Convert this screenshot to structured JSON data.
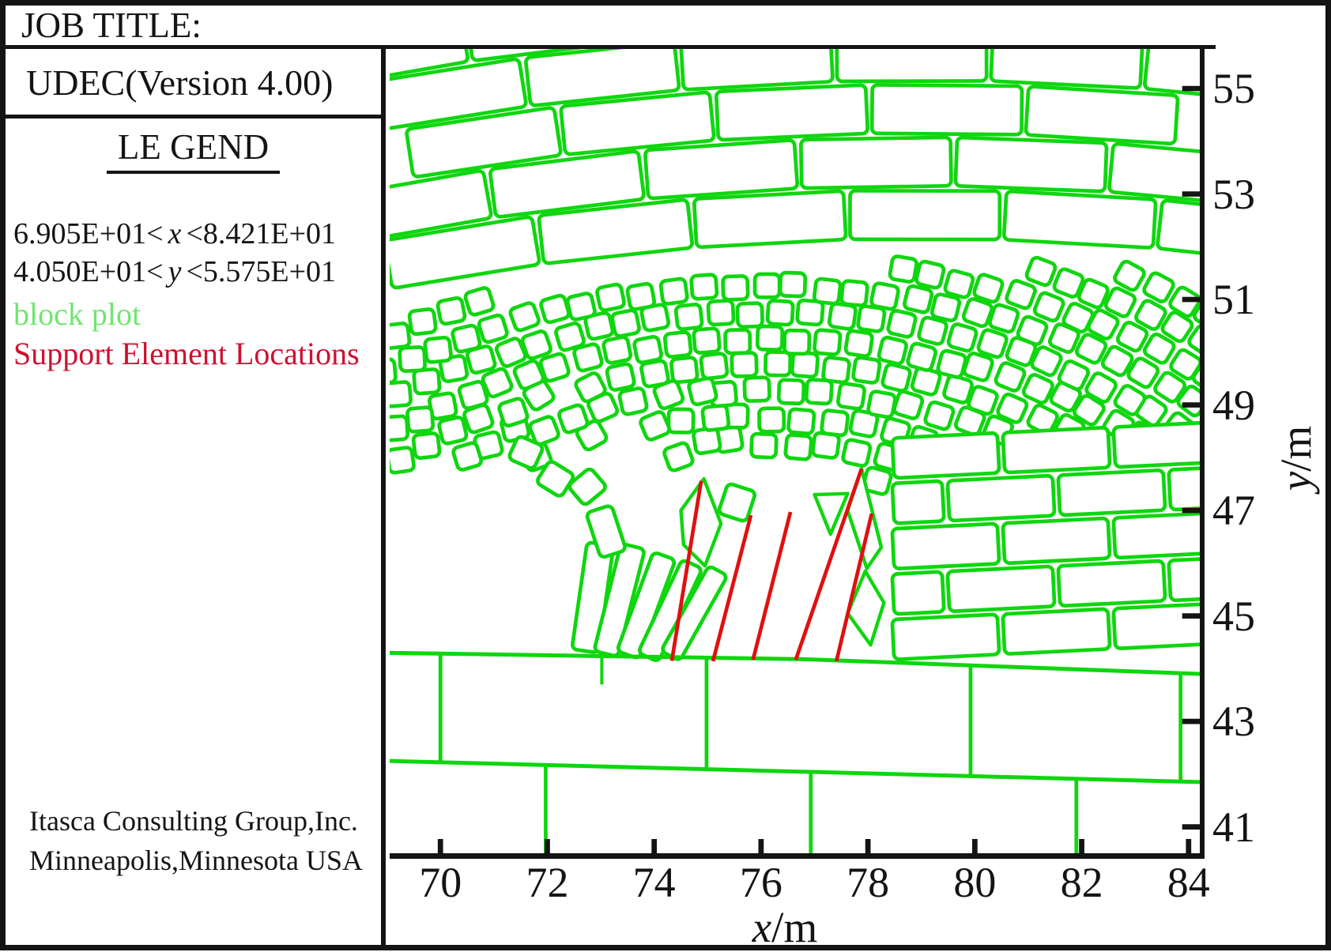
{
  "header": {
    "job_title": "JOB TITLE:"
  },
  "panel": {
    "app_title": "UDEC(Version 4.00)",
    "legend_heading": "LE GEND",
    "x_range": {
      "prefix": "6.905E+01<",
      "var": "x",
      "suffix": "<8.421E+01"
    },
    "y_range": {
      "prefix": "4.050E+01<",
      "var": "y",
      "suffix": "<5.575E+01"
    },
    "legend_items": [
      {
        "label": "block plot",
        "color": "#70e670"
      },
      {
        "label": "Support Element Locations",
        "color": "#cf1030"
      }
    ],
    "credit_line1": "Itasca Consulting Group,Inc.",
    "credit_line2": "Minneapolis,Minnesota USA"
  },
  "axes": {
    "x": {
      "var": "x",
      "unit": "m",
      "min": 69.05,
      "max": 84.21,
      "ticks": [
        70,
        72,
        74,
        76,
        78,
        80,
        82,
        84
      ]
    },
    "y": {
      "var": "y",
      "unit": "m",
      "min": 40.5,
      "max": 55.75,
      "ticks": [
        41,
        43,
        45,
        47,
        49,
        51,
        53,
        55
      ]
    }
  },
  "chart_data": {
    "type": "block-plot",
    "title": "",
    "x_range": [
      69.05,
      84.21
    ],
    "y_range": [
      40.5,
      55.75
    ],
    "grid": false,
    "colors": {
      "block_line": "#0fd60f",
      "support_line": "#e01010",
      "axis": "#141414"
    },
    "support_elements": [
      {
        "x1": 74.33,
        "y1": 44.15,
        "x2": 74.88,
        "y2": 47.56
      },
      {
        "x1": 75.1,
        "y1": 44.14,
        "x2": 75.81,
        "y2": 46.91
      },
      {
        "x1": 75.85,
        "y1": 44.17,
        "x2": 76.55,
        "y2": 46.97
      },
      {
        "x1": 76.65,
        "y1": 44.17,
        "x2": 77.88,
        "y2": 47.79
      },
      {
        "x1": 77.41,
        "y1": 44.14,
        "x2": 78.07,
        "y2": 46.94
      }
    ],
    "block_structure": {
      "foundation": {
        "floor": [
          [
            69.05,
            44.3
          ],
          [
            76.8,
            44.18
          ],
          [
            84.21,
            43.9
          ]
        ],
        "bed_joint": [
          [
            69.05,
            42.25
          ],
          [
            84.21,
            41.85
          ]
        ],
        "upper_joints_x": [
          70.0,
          74.98,
          79.92,
          83.85
        ],
        "lower_joints_x": [
          71.97,
          76.93,
          81.9
        ],
        "cracks": [
          [
            73.02,
            44.28,
            73.02,
            43.7
          ]
        ]
      },
      "arch": {
        "center": [
          76.0,
          40.6
        ],
        "kx": 1.25,
        "shell_thickness": 0.5,
        "block_cell": 0.52,
        "fan": {
          "r_in": 3.9,
          "r_out": 6.95,
          "theta_deg": [
            102,
            178
          ]
        },
        "band": {
          "r_in": 6.95,
          "r_out": 13.9,
          "theta_deg": [
            30,
            178
          ]
        }
      },
      "top_courses": {
        "center": [
          79.0,
          0.0
        ],
        "base_radius": 52.1,
        "course_height": 1.0,
        "count": 5,
        "brick_cell": 2.9,
        "theta_deg": [
          74,
          104
        ]
      },
      "abutment": {
        "x_min": 78.42,
        "x_max": 84.6,
        "y_base": 44.12,
        "course_height": 0.86,
        "count": 5,
        "brick_cell": 2.07,
        "slope": 0.05
      },
      "void_polygon": [
        [
          72.5,
          44.26
        ],
        [
          78.36,
          44.2
        ],
        [
          78.36,
          47.15
        ],
        [
          77.6,
          47.95
        ],
        [
          75.25,
          47.5
        ],
        [
          74.4,
          46.5
        ],
        [
          73.35,
          46.55
        ],
        [
          72.6,
          45.6
        ]
      ],
      "gaps": [
        {
          "cx": 72.3,
          "cy": 46.6,
          "rx": 1.15,
          "ry": 0.9
        },
        {
          "cx": 73.4,
          "cy": 48.05,
          "rx": 0.6,
          "ry": 0.5
        },
        {
          "cx": 71.9,
          "cy": 45.1,
          "rx": 0.65,
          "ry": 0.55
        }
      ],
      "disturbed_zone": {
        "x": [
          70.8,
          75.7
        ],
        "y": [
          44.3,
          49.4
        ]
      },
      "debris": [
        {
          "cx": 72.85,
          "cy": 45.35,
          "w": 0.5,
          "h": 2.05,
          "lean": 8
        },
        {
          "cx": 73.35,
          "cy": 45.3,
          "w": 0.46,
          "h": 2.1,
          "lean": 14
        },
        {
          "cx": 73.85,
          "cy": 45.2,
          "w": 0.44,
          "h": 2.0,
          "lean": 20
        },
        {
          "cx": 74.3,
          "cy": 45.1,
          "w": 0.42,
          "h": 1.95,
          "lean": 25
        },
        {
          "cx": 74.75,
          "cy": 45.05,
          "w": 0.4,
          "h": 1.85,
          "lean": 29
        },
        {
          "cx": 72.15,
          "cy": 47.6,
          "w": 0.55,
          "h": 0.5,
          "lean": 32
        },
        {
          "cx": 72.75,
          "cy": 47.45,
          "w": 0.55,
          "h": 0.5,
          "lean": -40
        },
        {
          "cx": 71.6,
          "cy": 48.1,
          "w": 0.52,
          "h": 0.48,
          "lean": 24
        },
        {
          "cx": 73.1,
          "cy": 46.6,
          "w": 0.5,
          "h": 0.9,
          "lean": -18
        },
        {
          "cx": 75.55,
          "cy": 47.15,
          "w": 0.55,
          "h": 0.6,
          "lean": 18
        }
      ],
      "wedges": [
        [
          [
            74.93,
            47.6
          ],
          [
            75.25,
            46.75
          ],
          [
            74.95,
            45.95
          ],
          [
            74.55,
            46.35
          ],
          [
            74.5,
            47.0
          ]
        ],
        [
          [
            77.88,
            47.79
          ],
          [
            78.25,
            46.3
          ],
          [
            77.98,
            45.9
          ],
          [
            77.62,
            47.0
          ]
        ],
        [
          [
            77.0,
            47.3
          ],
          [
            77.62,
            47.32
          ],
          [
            77.3,
            46.55
          ]
        ],
        [
          [
            77.95,
            45.85
          ],
          [
            78.3,
            45.25
          ],
          [
            78.05,
            44.45
          ],
          [
            77.62,
            45.05
          ]
        ]
      ]
    }
  }
}
